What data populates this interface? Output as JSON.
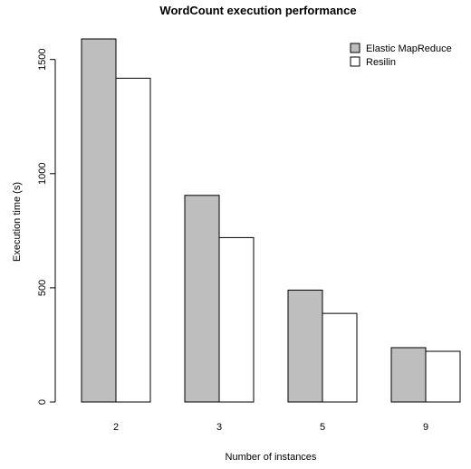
{
  "chart_data": {
    "type": "bar",
    "title": "WordCount execution performance",
    "xlabel": "Number of instances",
    "ylabel": "Execution time (s)",
    "categories": [
      "2",
      "3",
      "5",
      "9"
    ],
    "series": [
      {
        "name": "Elastic MapReduce",
        "values": [
          1590,
          905,
          490,
          238
        ],
        "color": "#bebebe"
      },
      {
        "name": "Resilin",
        "values": [
          1418,
          720,
          388,
          222
        ],
        "color": "#ffffff"
      }
    ],
    "ylim": [
      0,
      1590
    ],
    "yticks": [
      0,
      500,
      1000,
      1500
    ],
    "legend_position": "top-right",
    "grid": false
  }
}
